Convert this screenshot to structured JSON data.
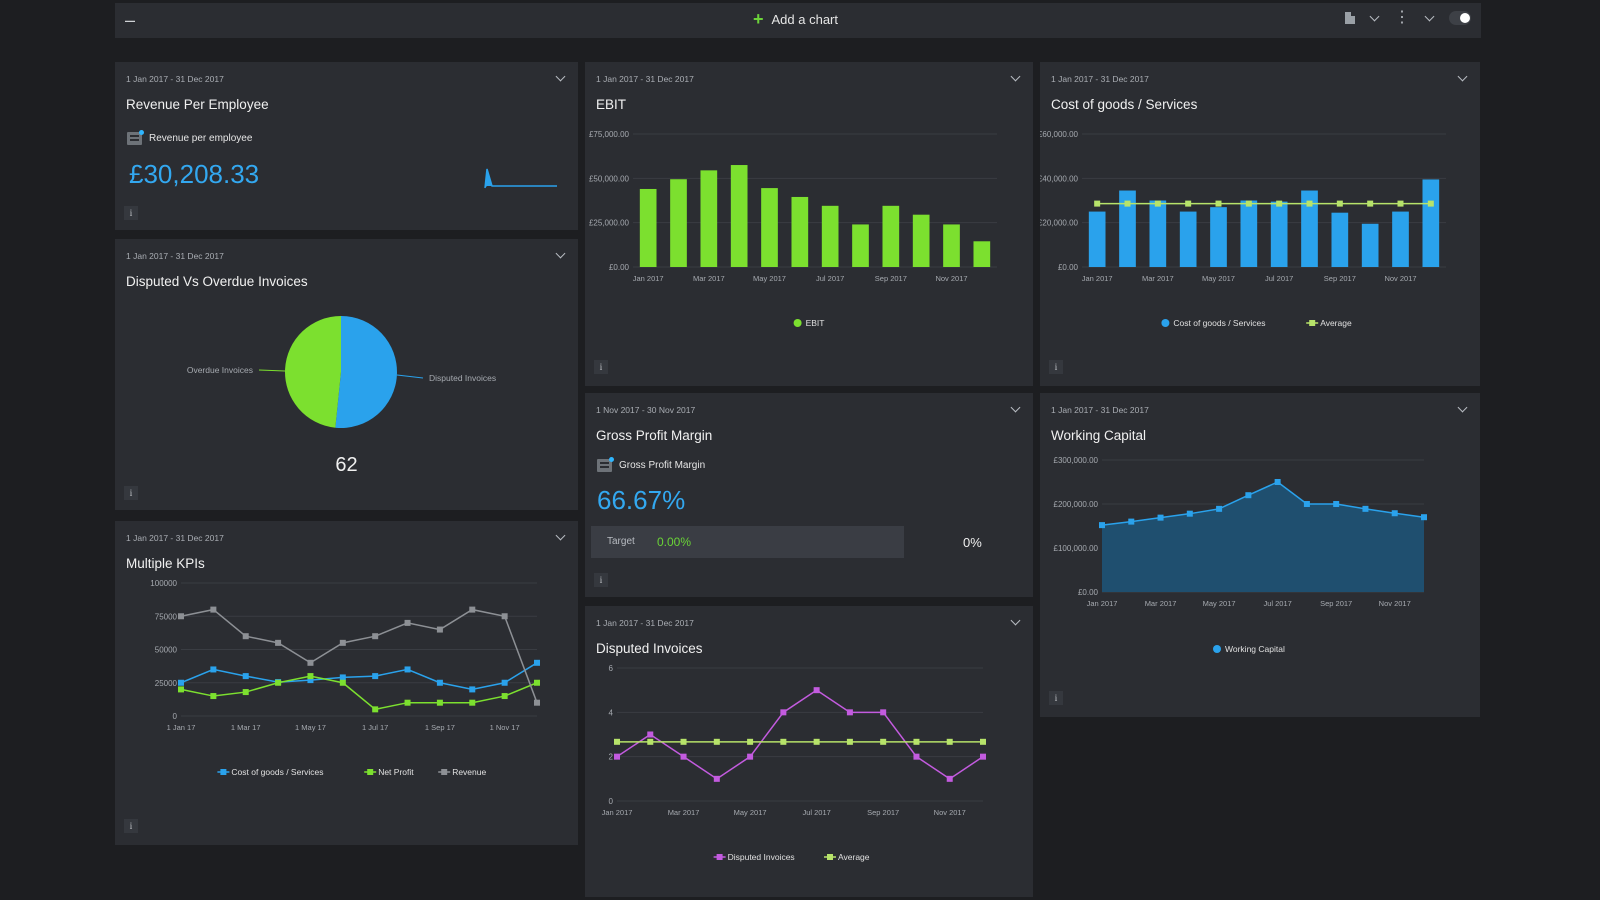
{
  "toolbar": {
    "collapse_label": "–",
    "add_chart_label": "Add a chart"
  },
  "panels": {
    "rpe": {
      "date": "1 Jan 2017 - 31 Dec 2017",
      "title": "Revenue Per Employee",
      "metric_label": "Revenue per employee",
      "value": "£30,208.33"
    },
    "disputed_overdue": {
      "date": "1 Jan 2017 - 31 Dec 2017",
      "title": "Disputed Vs Overdue Invoices",
      "total": "62"
    },
    "multi_kpi": {
      "date": "1 Jan 2017 - 31 Dec 2017",
      "title": "Multiple KPIs"
    },
    "ebit": {
      "date": "1 Jan 2017 - 31 Dec 2017",
      "title": "EBIT"
    },
    "gpm": {
      "date": "1 Nov 2017 - 30 Nov 2017",
      "title": "Gross Profit Margin",
      "metric_label": "Gross Profit Margin",
      "value": "66.67%",
      "target_label": "Target",
      "target_value": "0.00%",
      "target_pct": "0%"
    },
    "disputed": {
      "date": "1 Jan 2017 - 31 Dec 2017",
      "title": "Disputed Invoices"
    },
    "cogs": {
      "date": "1 Jan 2017 - 31 Dec 2017",
      "title": "Cost of goods / Services"
    },
    "wc": {
      "date": "1 Jan 2017 - 31 Dec 2017",
      "title": "Working Capital"
    }
  },
  "colors": {
    "green": "#7ce02f",
    "blue": "#2aa2ec",
    "lime": "#b7e36a",
    "purple": "#c35bdf",
    "grey": "#8d9095",
    "area": "#1f4f6f",
    "grid": "#3a3d43"
  },
  "chart_data": [
    {
      "id": "ebit",
      "type": "bar",
      "categories": [
        "Jan 2017",
        "Feb 2017",
        "Mar 2017",
        "Apr 2017",
        "May 2017",
        "Jun 2017",
        "Jul 2017",
        "Aug 2017",
        "Sep 2017",
        "Oct 2017",
        "Nov 2017",
        "Dec 2017"
      ],
      "tick_labels": [
        "Jan 2017",
        "",
        "Mar 2017",
        "",
        "May 2017",
        "",
        "Jul 2017",
        "",
        "Sep 2017",
        "",
        "Nov 2017",
        ""
      ],
      "y_tick_labels": [
        "£0.00",
        "£25,000.00",
        "£50,000.00",
        "£75,000.00"
      ],
      "ylim": [
        0,
        75000
      ],
      "series": [
        {
          "name": "EBIT",
          "values": [
            44000,
            49500,
            54500,
            57500,
            44500,
            39500,
            34500,
            24000,
            34500,
            29500,
            24000,
            14500
          ]
        }
      ],
      "legend": "bottom"
    },
    {
      "id": "cogs",
      "type": "bar",
      "categories": [
        "Jan 2017",
        "Feb 2017",
        "Mar 2017",
        "Apr 2017",
        "May 2017",
        "Jun 2017",
        "Jul 2017",
        "Aug 2017",
        "Sep 2017",
        "Oct 2017",
        "Nov 2017",
        "Dec 2017"
      ],
      "tick_labels": [
        "Jan 2017",
        "",
        "Mar 2017",
        "",
        "May 2017",
        "",
        "Jul 2017",
        "",
        "Sep 2017",
        "",
        "Nov 2017",
        ""
      ],
      "y_tick_labels": [
        "£0.00",
        "£20,000.00",
        "£40,000.00",
        "£60,000.00"
      ],
      "ylim": [
        0,
        60000
      ],
      "series": [
        {
          "name": "Cost of goods / Services",
          "values": [
            25000,
            34500,
            30000,
            25000,
            27000,
            30000,
            29500,
            34500,
            24500,
            19500,
            25000,
            39500
          ]
        },
        {
          "name": "Average",
          "values": [
            28600,
            28600,
            28600,
            28600,
            28600,
            28600,
            28600,
            28600,
            28600,
            28600,
            28600,
            28600
          ]
        }
      ],
      "legend": "bottom"
    },
    {
      "id": "wc",
      "type": "area",
      "categories": [
        "Jan 2017",
        "Feb 2017",
        "Mar 2017",
        "Apr 2017",
        "May 2017",
        "Jun 2017",
        "Jul 2017",
        "Aug 2017",
        "Sep 2017",
        "Oct 2017",
        "Nov 2017",
        "Dec 2017"
      ],
      "tick_labels": [
        "Jan 2017",
        "",
        "Mar 2017",
        "",
        "May 2017",
        "",
        "Jul 2017",
        "",
        "Sep 2017",
        "",
        "Nov 2017",
        ""
      ],
      "y_tick_labels": [
        "£0.00",
        "£100,000.00",
        "£200,000.00",
        "£300,000.00"
      ],
      "ylim": [
        0,
        300000
      ],
      "series": [
        {
          "name": "Working Capital",
          "values": [
            152000,
            160000,
            169000,
            178000,
            189000,
            220000,
            250000,
            200000,
            200000,
            189000,
            179000,
            170000
          ]
        }
      ],
      "legend": "bottom"
    },
    {
      "id": "disputed",
      "type": "line",
      "categories": [
        "Jan 2017",
        "Feb 2017",
        "Mar 2017",
        "Apr 2017",
        "May 2017",
        "Jun 2017",
        "Jul 2017",
        "Aug 2017",
        "Sep 2017",
        "Oct 2017",
        "Nov 2017",
        "Dec 2017"
      ],
      "tick_labels": [
        "Jan 2017",
        "",
        "Mar 2017",
        "",
        "May 2017",
        "",
        "Jul 2017",
        "",
        "Sep 2017",
        "",
        "Nov 2017",
        ""
      ],
      "y_tick_labels": [
        "0",
        "2",
        "4",
        "6"
      ],
      "ylim": [
        0,
        6
      ],
      "series": [
        {
          "name": "Disputed Invoices",
          "values": [
            2,
            3,
            2,
            1,
            2,
            4,
            5,
            4,
            4,
            2,
            1,
            2
          ]
        },
        {
          "name": "Average",
          "values": [
            2.67,
            2.67,
            2.67,
            2.67,
            2.67,
            2.67,
            2.67,
            2.67,
            2.67,
            2.67,
            2.67,
            2.67
          ]
        }
      ],
      "legend": "bottom"
    },
    {
      "id": "multi",
      "type": "line",
      "categories": [
        "1 Jan 17",
        "1 Feb 17",
        "1 Mar 17",
        "1 Apr 17",
        "1 May 17",
        "1 Jun 17",
        "1 Jul 17",
        "1 Aug 17",
        "1 Sep 17",
        "1 Oct 17",
        "1 Nov 17",
        "1 Dec 17"
      ],
      "tick_labels": [
        "1 Jan 17",
        "",
        "1 Mar 17",
        "",
        "1 May 17",
        "",
        "1 Jul 17",
        "",
        "1 Sep 17",
        "",
        "1 Nov 17",
        ""
      ],
      "y_tick_labels": [
        "0",
        "25000",
        "50000",
        "75000",
        "100000"
      ],
      "ylim": [
        0,
        100000
      ],
      "series": [
        {
          "name": "Cost of goods / Services",
          "values": [
            25000,
            35000,
            30000,
            25500,
            27000,
            29000,
            30000,
            35000,
            25000,
            20000,
            25000,
            40000
          ]
        },
        {
          "name": "Net Profit",
          "values": [
            20000,
            15000,
            18000,
            25000,
            30000,
            25000,
            5000,
            10000,
            10000,
            10000,
            15000,
            25000
          ]
        },
        {
          "name": "Revenue",
          "values": [
            75000,
            80000,
            60000,
            55000,
            40000,
            55000,
            60000,
            70000,
            65000,
            80000,
            75000,
            10000
          ]
        }
      ],
      "legend": "bottom"
    },
    {
      "id": "pie",
      "type": "pie",
      "labels": [
        "Disputed Invoices",
        "Overdue Invoices"
      ],
      "values": [
        32,
        30
      ],
      "total": 62
    }
  ]
}
